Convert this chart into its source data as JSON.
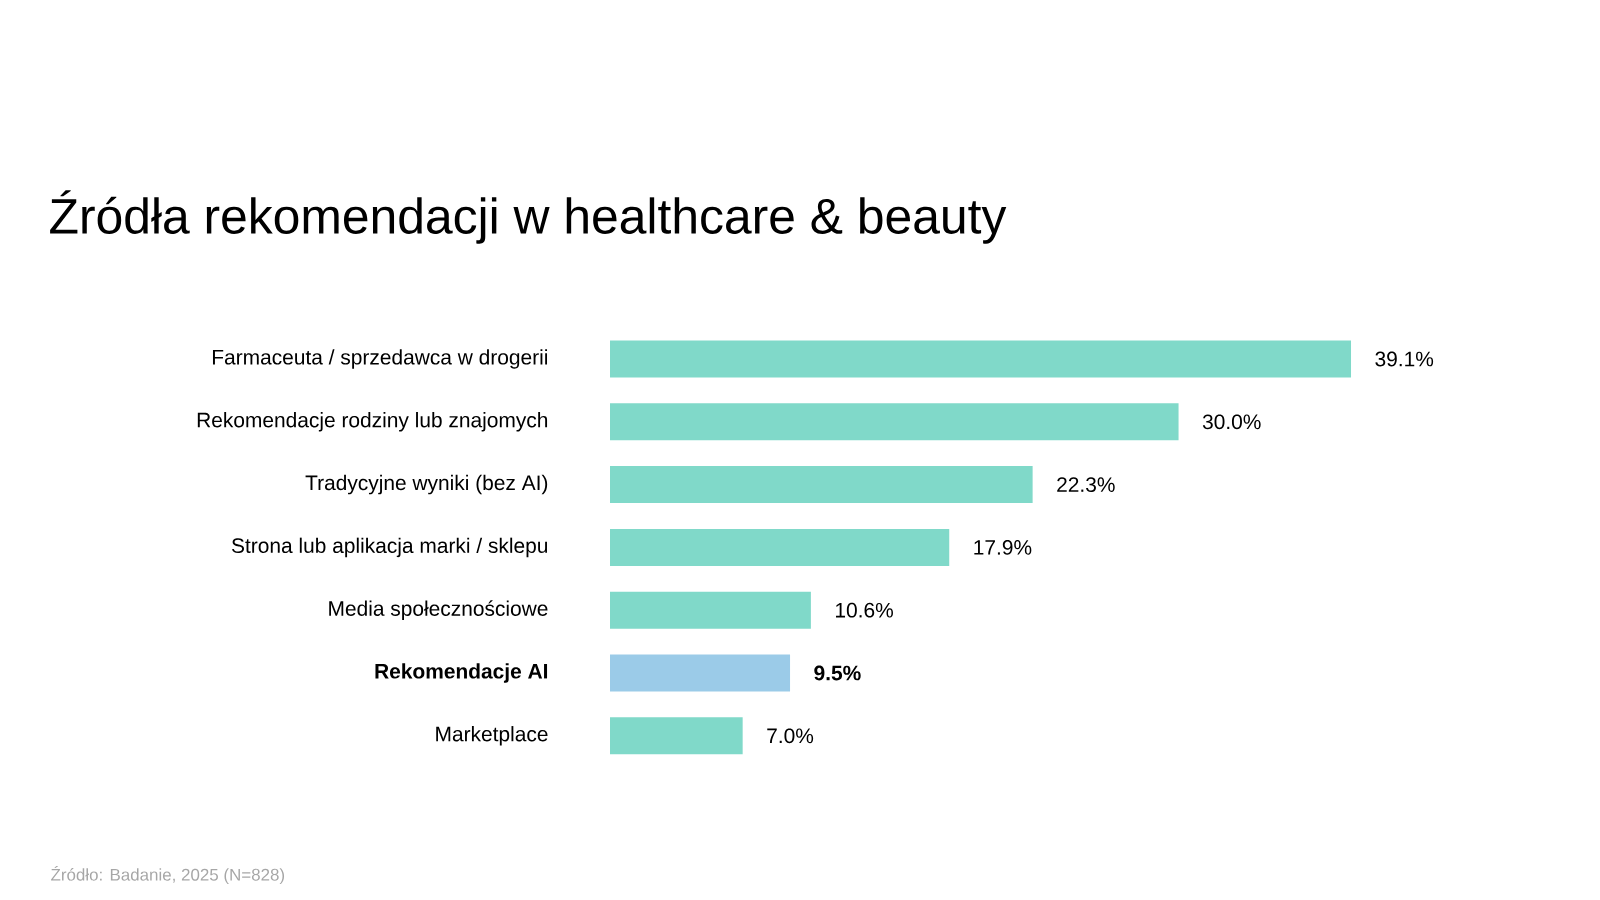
{
  "chart_data": {
    "type": "bar",
    "orientation": "horizontal",
    "title": "Źródła rekomendacji w healthcare & beauty",
    "categories": [
      "Farmaceuta / sprzedawca w drogerii",
      "Rekomendacje rodziny lub znajomych",
      "Tradycyjne wyniki (bez AI)",
      "Strona lub aplikacja marki / sklepu",
      "Media społecznościowe",
      "**Rekomendacje AI**",
      "Marketplace"
    ],
    "values": [
      39.1,
      30.0,
      22.3,
      17.9,
      10.6,
      9.5,
      7.0
    ],
    "colors": [
      "#80d9c9",
      "#80d9c9",
      "#80d9c9",
      "#80d9c9",
      "#80d9c9",
      "#9bcbe8",
      "#80d9c9"
    ],
    "value_labels": [
      "39.1%",
      "30.0%",
      "22.3%",
      "17.9%",
      "10.6%",
      "**9.5%**",
      "7.0%"
    ],
    "annotations": [
      "Źródło: Badanie, 2025 (N=828)"
    ]
  }
}
